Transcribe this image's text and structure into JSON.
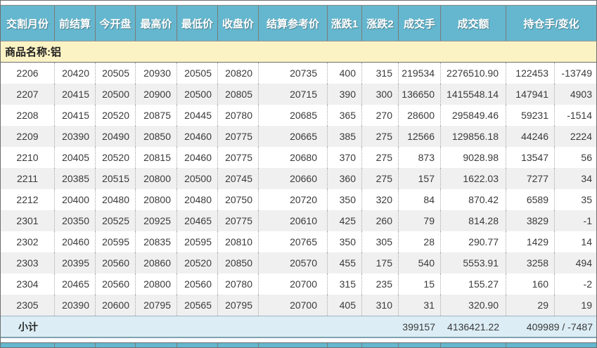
{
  "table": {
    "headers": [
      "交割月份",
      "前结算",
      "今开盘",
      "最高价",
      "最低价",
      "收盘价",
      "结算参考价",
      "涨跌1",
      "涨跌2",
      "成交手",
      "成交额",
      "持仓手/变化"
    ],
    "product_label": "商品名称:铝",
    "rows": [
      [
        "2206",
        "20420",
        "20505",
        "20930",
        "20505",
        "20820",
        "20735",
        "400",
        "315",
        "219534",
        "2276510.90",
        "122453",
        "-13749"
      ],
      [
        "2207",
        "20415",
        "20500",
        "20900",
        "20500",
        "20805",
        "20715",
        "390",
        "300",
        "136650",
        "1415548.14",
        "147941",
        "4903"
      ],
      [
        "2208",
        "20415",
        "20520",
        "20875",
        "20445",
        "20780",
        "20685",
        "365",
        "270",
        "28600",
        "295849.46",
        "59231",
        "-1514"
      ],
      [
        "2209",
        "20390",
        "20490",
        "20850",
        "20460",
        "20775",
        "20665",
        "385",
        "275",
        "12566",
        "129856.18",
        "44246",
        "2224"
      ],
      [
        "2210",
        "20405",
        "20520",
        "20815",
        "20460",
        "20775",
        "20680",
        "370",
        "275",
        "873",
        "9028.98",
        "13547",
        "56"
      ],
      [
        "2211",
        "20385",
        "20515",
        "20800",
        "20500",
        "20745",
        "20660",
        "360",
        "275",
        "157",
        "1622.03",
        "7277",
        "34"
      ],
      [
        "2212",
        "20400",
        "20480",
        "20800",
        "20480",
        "20750",
        "20720",
        "350",
        "320",
        "84",
        "870.42",
        "6589",
        "35"
      ],
      [
        "2301",
        "20350",
        "20525",
        "20925",
        "20465",
        "20775",
        "20610",
        "425",
        "260",
        "79",
        "814.28",
        "3829",
        "-1"
      ],
      [
        "2302",
        "20460",
        "20595",
        "20835",
        "20595",
        "20810",
        "20765",
        "350",
        "305",
        "28",
        "290.77",
        "1429",
        "14"
      ],
      [
        "2303",
        "20395",
        "20560",
        "20860",
        "20520",
        "20850",
        "20570",
        "455",
        "175",
        "540",
        "5553.91",
        "3258",
        "494"
      ],
      [
        "2304",
        "20465",
        "20560",
        "20800",
        "20560",
        "20780",
        "20700",
        "315",
        "235",
        "15",
        "155.27",
        "160",
        "-2"
      ],
      [
        "2305",
        "20390",
        "20600",
        "20795",
        "20565",
        "20795",
        "20700",
        "405",
        "310",
        "31",
        "320.90",
        "29",
        "19"
      ]
    ],
    "subtotal": {
      "label": "小计",
      "volume": "399157",
      "turnover": "4136421.22",
      "open_interest_change": "409989 / -7487"
    }
  },
  "colors": {
    "header_bg": "#64b7ce",
    "header_text": "#ffffff",
    "product_band_bg": "#fcf3c5",
    "row_alt_bg": "#f0f0f0",
    "subtotal_bg": "#dcedf5",
    "data_text": "#3a3a3a"
  }
}
